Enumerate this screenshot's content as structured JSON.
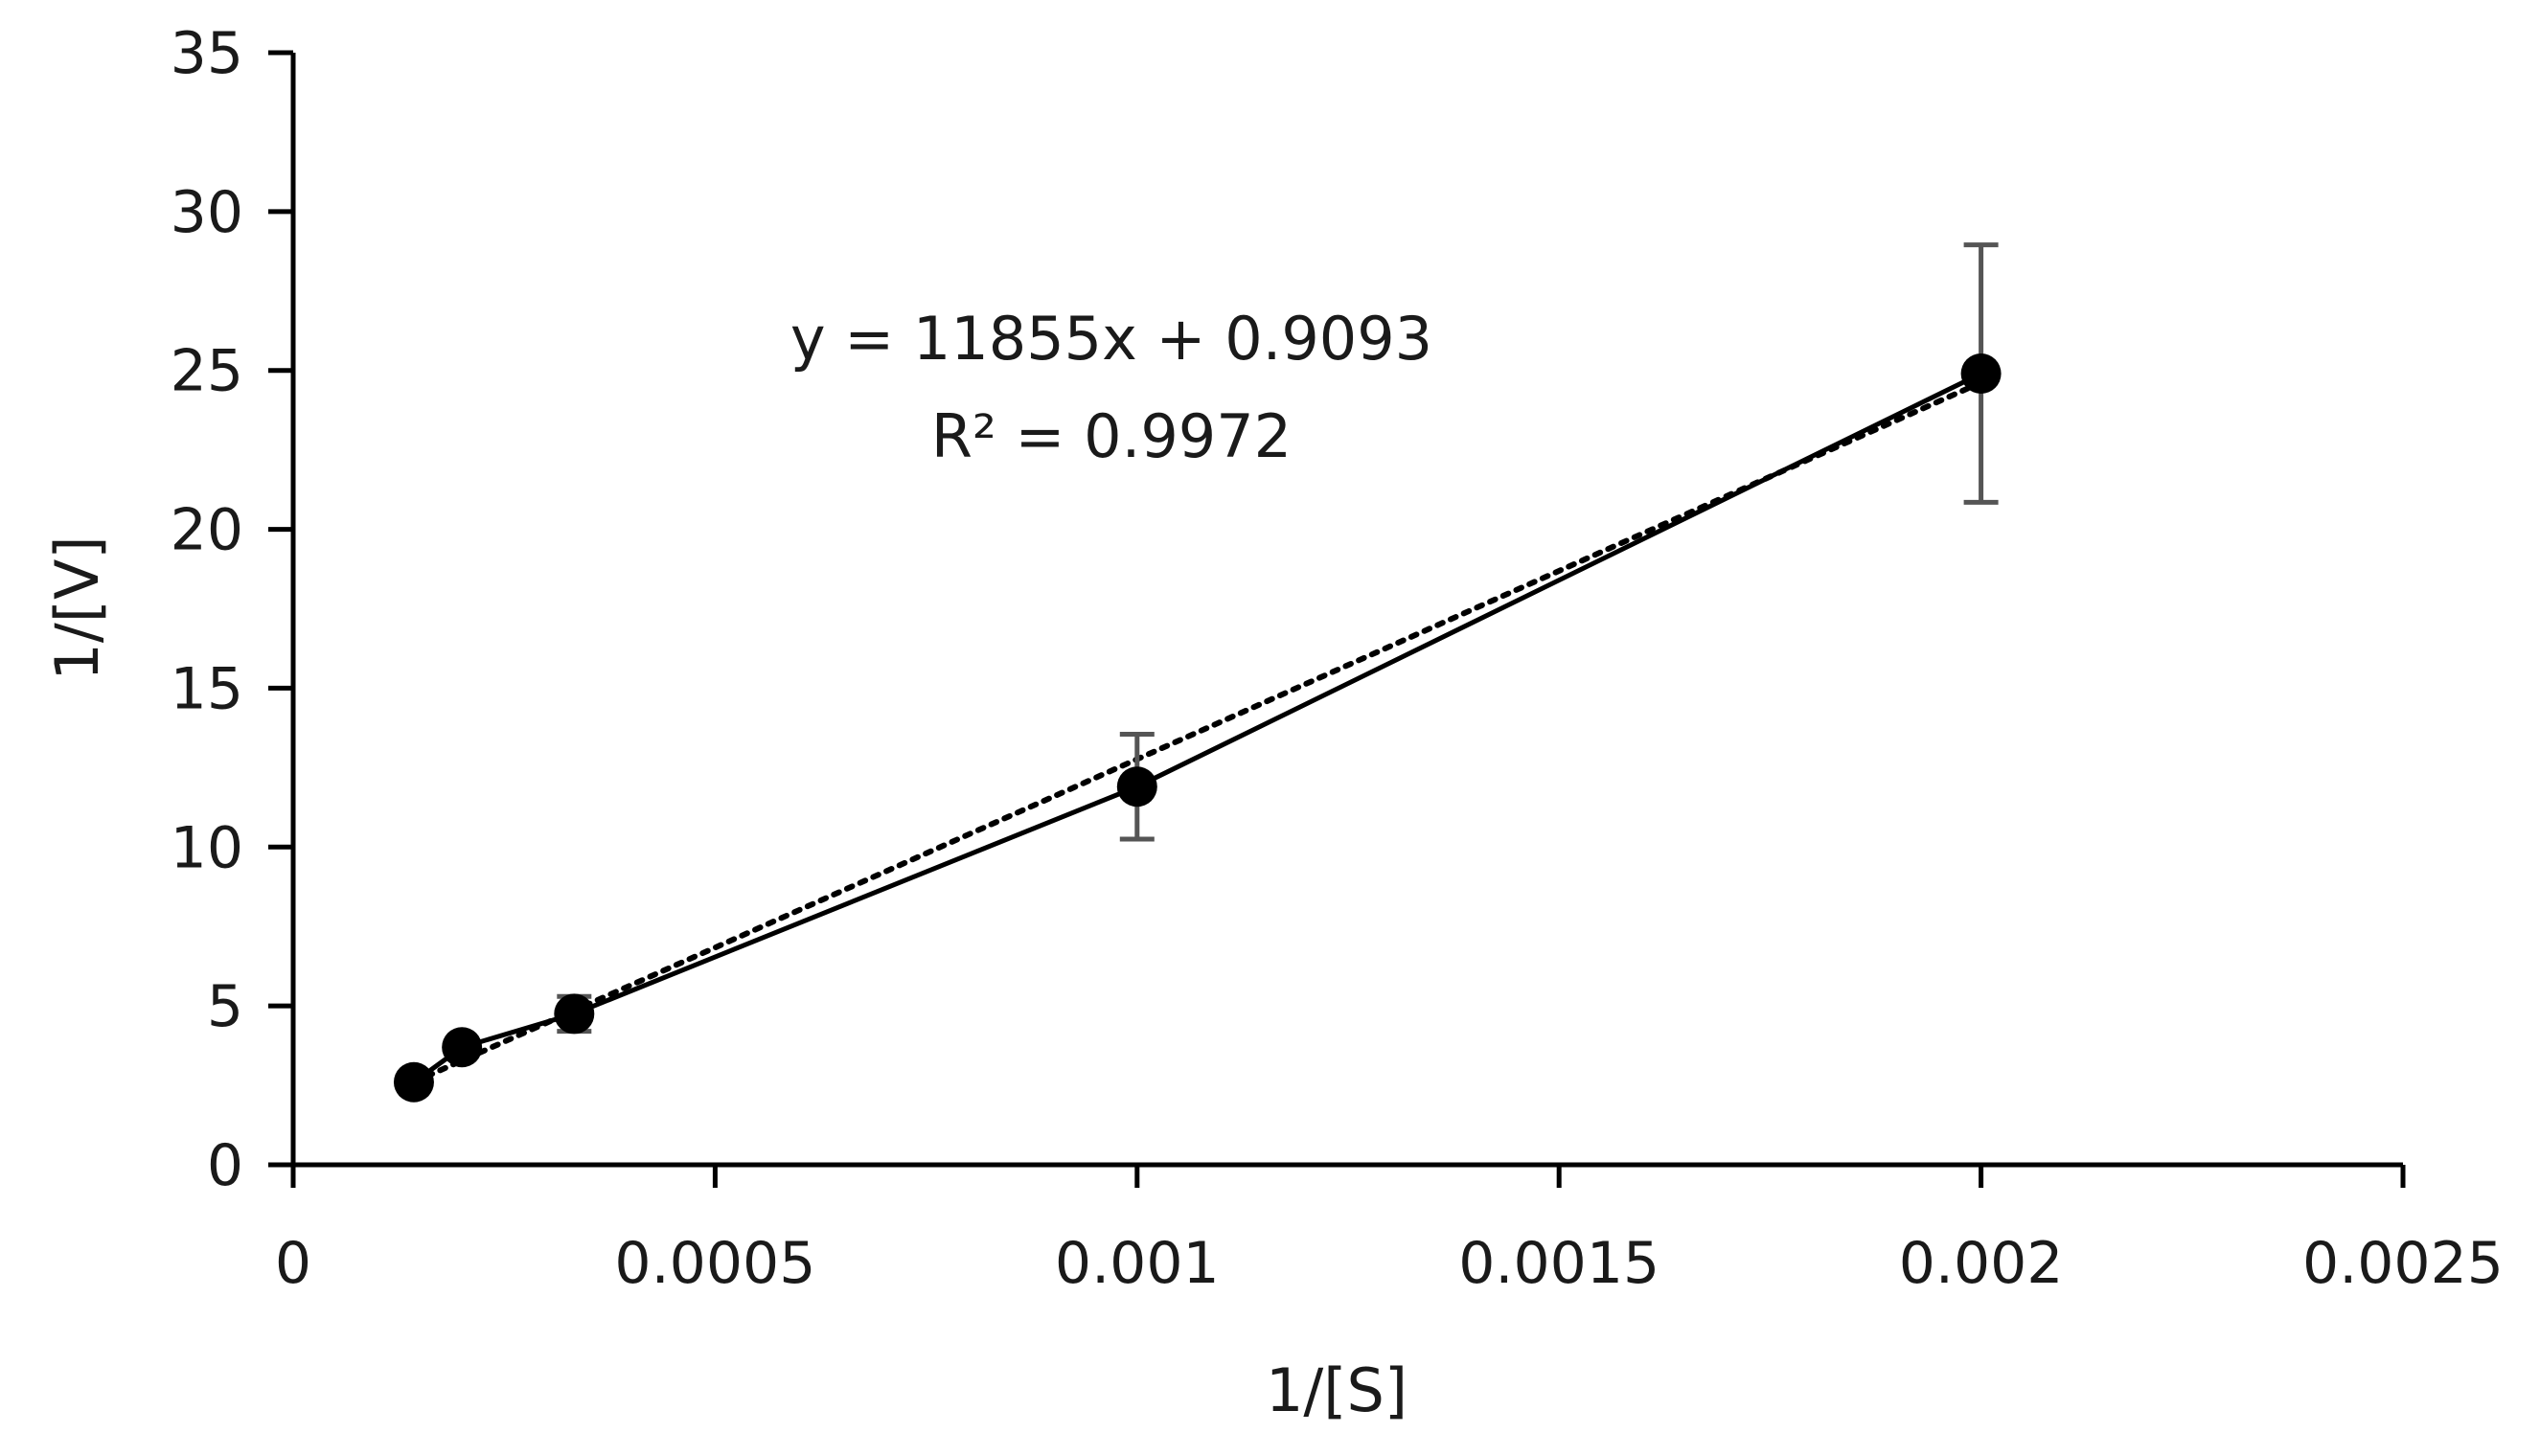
{
  "chart_data": {
    "type": "scatter",
    "title": "",
    "xlabel": "1/[S]",
    "ylabel": "1/[V]",
    "xlim": [
      0,
      0.0025
    ],
    "ylim": [
      0,
      35
    ],
    "xticks": [
      0,
      0.0005,
      0.001,
      0.0015,
      0.002,
      0.0025
    ],
    "xtick_labels": [
      "0",
      "0.0005",
      "0.001",
      "0.0015",
      "0.002",
      "0.0025"
    ],
    "yticks": [
      0,
      5,
      10,
      15,
      20,
      25,
      30,
      35
    ],
    "ytick_labels": [
      "0",
      "5",
      "10",
      "15",
      "20",
      "25",
      "30",
      "35"
    ],
    "grid": false,
    "legend": "none",
    "series": [
      {
        "style": "markers-solid-line",
        "color": "#000000",
        "x": [
          0.000143,
          0.0002,
          0.000333,
          0.001,
          0.002
        ],
        "y": [
          2.6,
          3.7,
          4.75,
          11.9,
          24.9
        ],
        "error": [
          0.15,
          0.2,
          0.55,
          1.65,
          4.05
        ]
      }
    ],
    "trendline": {
      "style": "dotted",
      "color": "#000000",
      "slope": 11855,
      "intercept": 0.9093,
      "x_range": [
        0.000143,
        0.002
      ],
      "equation_text": "y = 11855x + 0.9093",
      "r2_text": "R² = 0.9972"
    }
  }
}
